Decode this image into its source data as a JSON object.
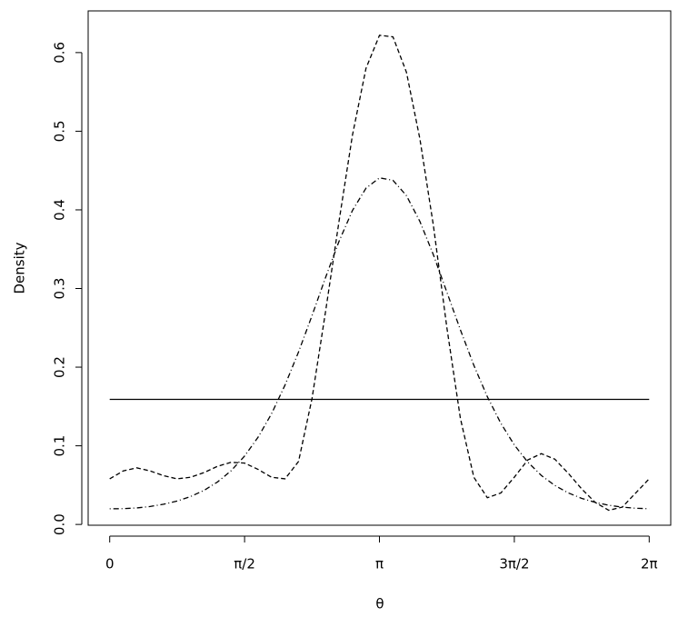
{
  "chart_data": {
    "type": "line",
    "xlabel": "θ",
    "ylabel": "Density",
    "x": [
      0,
      0.157,
      0.314,
      0.471,
      0.628,
      0.785,
      0.942,
      1.1,
      1.257,
      1.414,
      1.571,
      1.728,
      1.885,
      2.042,
      2.199,
      2.356,
      2.513,
      2.67,
      2.827,
      2.985,
      3.142,
      3.299,
      3.456,
      3.613,
      3.77,
      3.927,
      4.084,
      4.241,
      4.398,
      4.555,
      4.712,
      4.869,
      5.027,
      5.184,
      5.341,
      5.498,
      5.655,
      5.812,
      5.969,
      6.126,
      6.283
    ],
    "series": [
      {
        "color": "#000000",
        "dash": "solid",
        "values": [
          0.159,
          0.159,
          0.159,
          0.159,
          0.159,
          0.159,
          0.159,
          0.159,
          0.159,
          0.159,
          0.159,
          0.159,
          0.159,
          0.159,
          0.159,
          0.159,
          0.159,
          0.159,
          0.159,
          0.159,
          0.159,
          0.159,
          0.159,
          0.159,
          0.159,
          0.159,
          0.159,
          0.159,
          0.159,
          0.159,
          0.159,
          0.159,
          0.159,
          0.159,
          0.159,
          0.159,
          0.159,
          0.159,
          0.159,
          0.159,
          0.159
        ]
      },
      {
        "color": "#000000",
        "dash": "dashed",
        "values": [
          0.058,
          0.068,
          0.072,
          0.068,
          0.062,
          0.058,
          0.06,
          0.066,
          0.074,
          0.079,
          0.078,
          0.07,
          0.06,
          0.058,
          0.08,
          0.16,
          0.27,
          0.385,
          0.495,
          0.58,
          0.622,
          0.62,
          0.575,
          0.49,
          0.38,
          0.25,
          0.135,
          0.06,
          0.034,
          0.04,
          0.06,
          0.082,
          0.09,
          0.083,
          0.065,
          0.045,
          0.028,
          0.018,
          0.022,
          0.04,
          0.058
        ]
      },
      {
        "color": "#000000",
        "dash": "dotdash",
        "values": [
          0.0199,
          0.0201,
          0.021,
          0.0228,
          0.0257,
          0.0297,
          0.0355,
          0.0434,
          0.0541,
          0.0683,
          0.087,
          0.1109,
          0.1408,
          0.1773,
          0.2192,
          0.2655,
          0.3137,
          0.3598,
          0.3992,
          0.4276,
          0.4407,
          0.4376,
          0.4181,
          0.3852,
          0.3428,
          0.2953,
          0.2475,
          0.2023,
          0.1624,
          0.1287,
          0.1011,
          0.0793,
          0.0623,
          0.0496,
          0.0401,
          0.0331,
          0.028,
          0.0244,
          0.022,
          0.0206,
          0.02
        ]
      }
    ],
    "xlim": [
      -0.251,
      6.534
    ],
    "ylim": [
      -0.001,
      0.653
    ],
    "xticks": [
      0,
      {
        "value": 1.5708,
        "label": "π/2"
      },
      {
        "value": 3.1416,
        "label": "π"
      },
      {
        "value": 4.7124,
        "label": "3π/2"
      },
      {
        "value": 6.2832,
        "label": "2π"
      }
    ],
    "yticks": [
      {
        "value": 0,
        "label": "0.0"
      },
      0.1,
      0.2,
      0.3,
      0.4,
      0.5,
      0.6
    ]
  }
}
